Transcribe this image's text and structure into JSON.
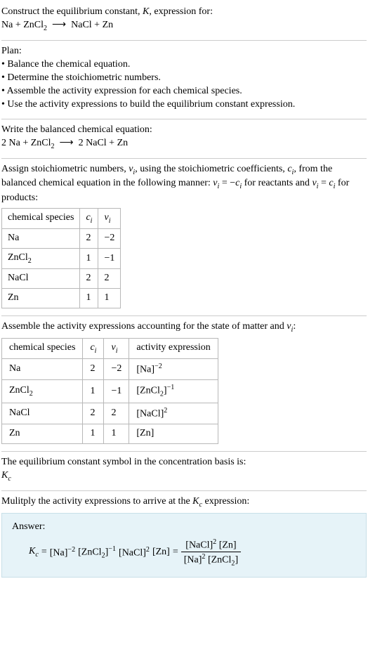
{
  "intro": {
    "line1_pre": "Construct the equilibrium constant, ",
    "line1_k": "K",
    "line1_post": ", expression for:",
    "eq_lhs": "Na + ZnCl",
    "eq_sub1": "2",
    "eq_arrow": "⟶",
    "eq_rhs": "NaCl + Zn"
  },
  "plan": {
    "heading": "Plan:",
    "b1": "• Balance the chemical equation.",
    "b2": "• Determine the stoichiometric numbers.",
    "b3": "• Assemble the activity expression for each chemical species.",
    "b4": "• Use the activity expressions to build the equilibrium constant expression."
  },
  "balanced": {
    "heading": "Write the balanced chemical equation:",
    "lhs_a": "2 Na + ZnCl",
    "lhs_sub": "2",
    "arrow": "⟶",
    "rhs": "2 NaCl + Zn"
  },
  "stoich": {
    "p_a": "Assign stoichiometric numbers, ",
    "nu": "ν",
    "sub_i": "i",
    "p_b": ", using the stoichiometric coefficients, ",
    "c": "c",
    "p_c": ", from the balanced chemical equation in the following manner: ",
    "eq1_lhs": "ν",
    "eq1_eq": " = −",
    "eq1_rhs": "c",
    "p_d": " for reactants and ",
    "eq2_lhs": "ν",
    "eq2_eq": " = ",
    "eq2_rhs": "c",
    "p_e": " for products:"
  },
  "table1": {
    "h1": "chemical species",
    "h2_c": "c",
    "h2_i": "i",
    "h3_nu": "ν",
    "h3_i": "i",
    "rows": [
      {
        "sp": "Na",
        "sp_sub": "",
        "c": "2",
        "nu": "−2"
      },
      {
        "sp": "ZnCl",
        "sp_sub": "2",
        "c": "1",
        "nu": "−1"
      },
      {
        "sp": "NaCl",
        "sp_sub": "",
        "c": "2",
        "nu": "2"
      },
      {
        "sp": "Zn",
        "sp_sub": "",
        "c": "1",
        "nu": "1"
      }
    ]
  },
  "assemble": {
    "p_a": "Assemble the activity expressions accounting for the state of matter and ",
    "nu": "ν",
    "sub_i": "i",
    "p_b": ":"
  },
  "table2": {
    "h1": "chemical species",
    "h2_c": "c",
    "h2_i": "i",
    "h3_nu": "ν",
    "h3_i": "i",
    "h4": "activity expression",
    "rows": [
      {
        "sp": "Na",
        "sp_sub": "",
        "c": "2",
        "nu": "−2",
        "act_base": "[Na]",
        "act_exp": "−2"
      },
      {
        "sp": "ZnCl",
        "sp_sub": "2",
        "c": "1",
        "nu": "−1",
        "act_base": "[ZnCl",
        "act_base_sub": "2",
        "act_close": "]",
        "act_exp": "−1"
      },
      {
        "sp": "NaCl",
        "sp_sub": "",
        "c": "2",
        "nu": "2",
        "act_base": "[NaCl]",
        "act_exp": "2"
      },
      {
        "sp": "Zn",
        "sp_sub": "",
        "c": "1",
        "nu": "1",
        "act_base": "[Zn]",
        "act_exp": ""
      }
    ]
  },
  "symbol": {
    "p": "The equilibrium constant symbol in the concentration basis is:",
    "K": "K",
    "c": "c"
  },
  "mult": {
    "p_a": "Mulitply the activity expressions to arrive at the ",
    "K": "K",
    "c": "c",
    "p_b": " expression:"
  },
  "answer": {
    "label": "Answer:",
    "K": "K",
    "Kc": "c",
    "eq": " = ",
    "t1_base": "[Na]",
    "t1_exp": "−2",
    "t2_base_a": "[ZnCl",
    "t2_sub": "2",
    "t2_base_b": "]",
    "t2_exp": "−1",
    "t3_base": "[NaCl]",
    "t3_exp": "2",
    "t4": "[Zn]",
    "eq2": " = ",
    "num_a": "[NaCl]",
    "num_a_exp": "2",
    "num_b": " [Zn]",
    "den_a": "[Na]",
    "den_a_exp": "2",
    "den_b_a": " [ZnCl",
    "den_b_sub": "2",
    "den_b_b": "]"
  },
  "style": {
    "background_color": "#ffffff",
    "text_color": "#000000",
    "divider_color": "#cccccc",
    "table_border_color": "#b8b8b8",
    "answer_bg": "#e6f3f8",
    "answer_border": "#c8dfe8",
    "base_fontsize": 14
  }
}
